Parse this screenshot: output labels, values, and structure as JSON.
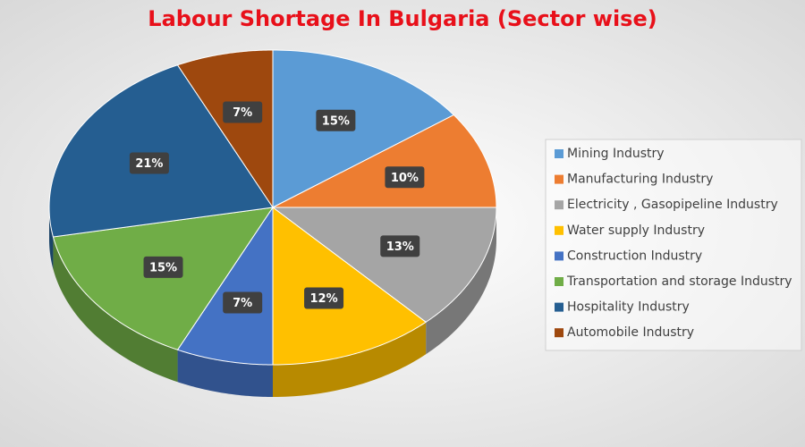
{
  "chart_data": {
    "type": "pie3d",
    "title": "Labour Shortage In Bulgaria (Sector wise)",
    "categories": [
      "Mining Industry",
      "Manufacturing Industry",
      "Electricity , Gasopipeline Industry",
      "Water supply Industry",
      "Construction Industry",
      "Transportation and storage Industry",
      "Hospitality Industry",
      "Automobile Industry"
    ],
    "values": [
      15,
      10,
      13,
      12,
      7,
      15,
      21,
      7
    ],
    "value_labels": [
      "15%",
      "10%",
      "13%",
      "12%",
      "7%",
      "15%",
      "21%",
      "7%"
    ],
    "colors": [
      "#5b9bd5",
      "#ed7d31",
      "#a5a5a5",
      "#ffc000",
      "#4472c4",
      "#70ad47",
      "#255e91",
      "#9e480e"
    ],
    "legend": "right"
  }
}
